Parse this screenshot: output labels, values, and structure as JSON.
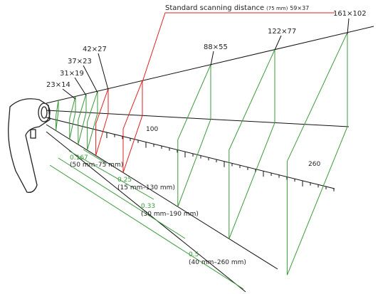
{
  "header": {
    "label": "Standard scanning distance",
    "distance": "(75 mm)",
    "size": "59×37"
  },
  "sizes": [
    "161×102",
    "122×77",
    "88×55",
    "42×27",
    "37×23",
    "31×19",
    "23×14"
  ],
  "ruler": {
    "labels": [
      "100",
      "260"
    ]
  },
  "ranges": [
    {
      "resolution": "0.167",
      "range": "(50 mm–75 mm)"
    },
    {
      "resolution": "0.25",
      "range": "(15 mm–130 mm)"
    },
    {
      "resolution": "0.33",
      "range": "(30 mm–190 mm)"
    },
    {
      "resolution": "0.5",
      "range": "(40 mm–260 mm)"
    }
  ]
}
